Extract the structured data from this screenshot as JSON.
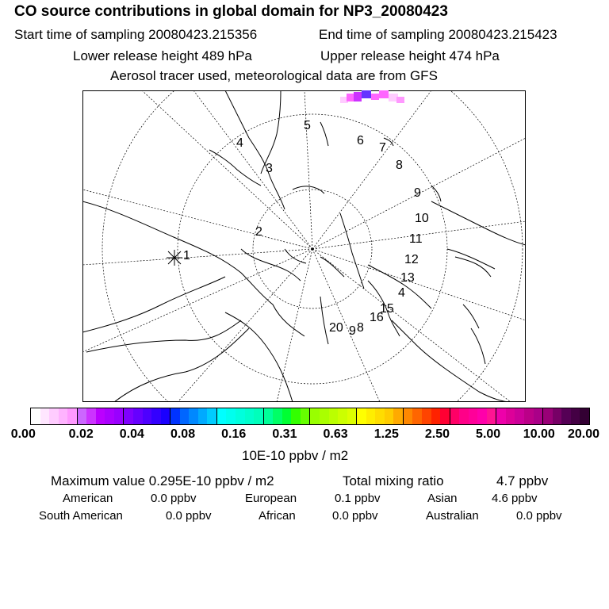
{
  "header": {
    "title": "CO  source contributions in global domain for NP3_20080423",
    "start_label": "Start time of sampling 20080423.215356",
    "end_label": "End time of sampling 20080423.215423",
    "lower_label": "Lower release height  489 hPa",
    "upper_label": "Upper release height  474 hPa",
    "aerosol_label": "Aerosol tracer used, meteorological data are from GFS"
  },
  "map": {
    "markers": [
      "1",
      "2",
      "3",
      "4",
      "5",
      "6",
      "7",
      "8",
      "9",
      "10",
      "11",
      "12",
      "13",
      "4",
      "15",
      "16",
      "20",
      "9",
      "8"
    ],
    "colors": {
      "coast": "#000000",
      "grid": "#000000",
      "plume_pink": "#ff66ff",
      "plume_blue": "#6633ff",
      "plume_light": "#ffccff"
    }
  },
  "colorbar": {
    "tick_labels": [
      "0.00",
      "0.02",
      "0.04",
      "0.08",
      "0.16",
      "0.31",
      "0.63",
      "1.25",
      "2.50",
      "5.00",
      "10.00",
      "20.00"
    ],
    "colors": [
      "#ffffff",
      "#ffe6ff",
      "#ffccff",
      "#ffb3ff",
      "#ff99ff",
      "#cc66ff",
      "#cc33ff",
      "#bb00ff",
      "#aa00ff",
      "#9900ff",
      "#7f00ff",
      "#6600ff",
      "#4d00ff",
      "#3300ff",
      "#1a00ff",
      "#0033ff",
      "#0066ff",
      "#0088ff",
      "#00aaff",
      "#00ccff",
      "#00ffff",
      "#00ffee",
      "#00ffdd",
      "#00ffcc",
      "#00ffbb",
      "#00ff99",
      "#00ff66",
      "#00ff33",
      "#33ff00",
      "#66ff00",
      "#99ff00",
      "#aaff00",
      "#bbff00",
      "#ccff00",
      "#ddff00",
      "#ffff00",
      "#ffee00",
      "#ffdd00",
      "#ffcc00",
      "#ffaa00",
      "#ff8800",
      "#ff6600",
      "#ff4400",
      "#ff2200",
      "#ff0033",
      "#ff0066",
      "#ff0088",
      "#ff0099",
      "#ff00aa",
      "#ff1493",
      "#ee00aa",
      "#dd0099",
      "#cc0099",
      "#bb0088",
      "#aa0088",
      "#990077",
      "#770066",
      "#550055",
      "#440044",
      "#330033"
    ],
    "unit_label": "10E-10 ppbv / m2"
  },
  "summary": {
    "max_label": "Maximum value  0.295E-10 ppbv / m2",
    "total_label": "Total mixing ratio",
    "total_value": "4.7 ppbv",
    "regions": [
      {
        "name": "American",
        "value": "0.0 ppbv"
      },
      {
        "name": "European",
        "value": "0.1 ppbv"
      },
      {
        "name": "Asian",
        "value": "4.6 ppbv"
      },
      {
        "name": "South American",
        "value": "0.0 ppbv"
      },
      {
        "name": "African",
        "value": "0.0 ppbv"
      },
      {
        "name": "Australian",
        "value": "0.0 ppbv"
      }
    ]
  }
}
